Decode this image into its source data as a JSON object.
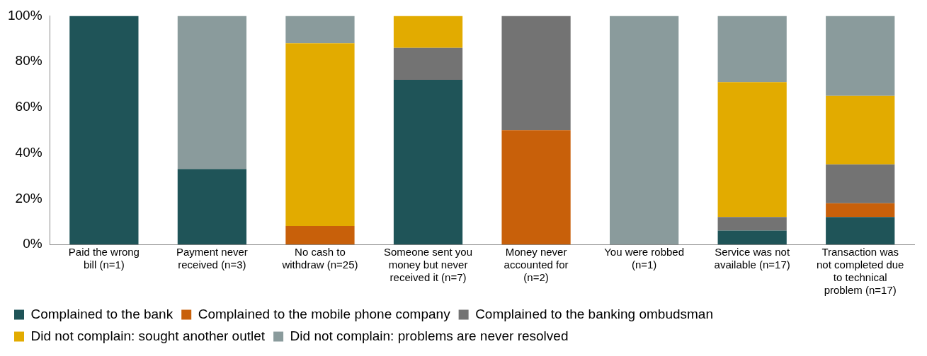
{
  "chart_data": {
    "type": "bar",
    "stacked": true,
    "categories": [
      "Paid the wrong bill (n=1)",
      "Payment never received (n=3)",
      "No cash to withdraw (n=25)",
      "Someone sent you money but never received it (n=7)",
      "Money never accounted for (n=2)",
      "You were robbed (n=1)",
      "Service was not available (n=17)",
      "Transaction was not completed due to technical problem (n=17)"
    ],
    "series": [
      {
        "name": "Complained to the bank",
        "color": "#1f5458",
        "values": [
          100,
          33,
          0,
          72,
          0,
          0,
          6,
          12
        ]
      },
      {
        "name": "Complained to the mobile phone company",
        "color": "#c8600a",
        "values": [
          0,
          0,
          8,
          0,
          50,
          0,
          0,
          6
        ]
      },
      {
        "name": "Complained to the banking ombudsman",
        "color": "#737373",
        "values": [
          0,
          0,
          0,
          14,
          50,
          0,
          6,
          17
        ]
      },
      {
        "name": "Did not complain: sought another outlet",
        "color": "#e2ab00",
        "values": [
          0,
          0,
          80,
          14,
          0,
          0,
          59,
          30
        ]
      },
      {
        "name": "Did not complain: problems are never resolved",
        "color": "#8a9b9c",
        "values": [
          0,
          67,
          12,
          0,
          0,
          100,
          29,
          35
        ]
      }
    ],
    "ylim": [
      0,
      100
    ],
    "yticks": [
      {
        "value": 0,
        "label": "0%"
      },
      {
        "value": 20,
        "label": "20%"
      },
      {
        "value": 40,
        "label": "40%"
      },
      {
        "value": 60,
        "label": "60%"
      },
      {
        "value": 80,
        "label": "80%"
      },
      {
        "value": 100,
        "label": "100%"
      }
    ],
    "grid": false,
    "legend": "bottom"
  }
}
